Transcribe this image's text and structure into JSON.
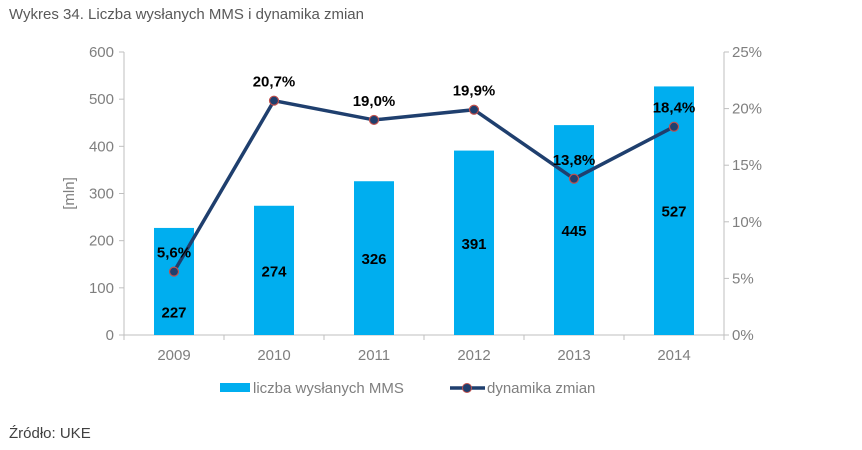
{
  "title": "Wykres 34. Liczba wysłanych MMS i dynamika zmian",
  "source": "Źródło: UKE",
  "chart_data": {
    "type": "bar+line",
    "categories": [
      "2009",
      "2010",
      "2011",
      "2012",
      "2013",
      "2014"
    ],
    "series": [
      {
        "name": "liczba wysłanych MMS",
        "type": "bar",
        "axis": "left",
        "values": [
          227,
          274,
          326,
          391,
          445,
          527
        ],
        "labels": [
          "227",
          "274",
          "326",
          "391",
          "445",
          "527"
        ],
        "color": "#00aeef"
      },
      {
        "name": "dynamika zmian",
        "type": "line",
        "axis": "right",
        "values": [
          5.6,
          20.7,
          19.0,
          19.9,
          13.8,
          18.4
        ],
        "labels": [
          "5,6%",
          "20,7%",
          "19,0%",
          "19,9%",
          "13,8%",
          "18,4%"
        ],
        "color": "#1f3f6e",
        "marker_color": "#c0504d"
      }
    ],
    "ylabel": "[mln]",
    "ylim": [
      0,
      600
    ],
    "yticks": [
      "0",
      "100",
      "200",
      "300",
      "400",
      "500",
      "600"
    ],
    "y2lim": [
      0,
      25
    ],
    "y2ticks": [
      "0%",
      "5%",
      "10%",
      "15%",
      "20%",
      "25%"
    ],
    "grid": false,
    "legend": "bottom"
  }
}
